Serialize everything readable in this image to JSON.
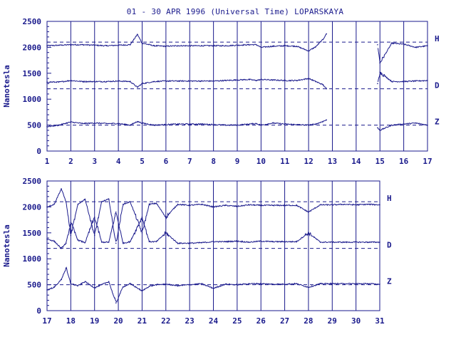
{
  "title": "01 - 30 APR 1996 (Universal Time) LOPARSKAYA",
  "line_color": "#1a1a8c",
  "chart_data": [
    {
      "type": "line",
      "panel": "top",
      "ylabel": "Nanotesla",
      "ylim": [
        0,
        2500
      ],
      "y_ticks": [
        0,
        500,
        1000,
        1500,
        2000,
        2500
      ],
      "x_range": [
        1,
        17
      ],
      "x_ticks": [
        "1",
        "2",
        "3",
        "4",
        "5",
        "6",
        "7",
        "8",
        "9",
        "10",
        "11",
        "12",
        "13",
        "14",
        "15",
        "16",
        "17"
      ],
      "data_gap": [
        12.75,
        14.9
      ],
      "grid": "vertical lines at each day",
      "series": [
        {
          "name": "H",
          "baseline": 2100,
          "x": [
            1,
            1.5,
            2,
            2.5,
            3,
            3.5,
            4,
            4.5,
            4.8,
            5,
            5.5,
            6,
            6.5,
            7,
            7.5,
            8,
            8.5,
            9,
            9.5,
            9.8,
            10,
            10.5,
            11,
            11.5,
            12,
            12.3,
            12.6,
            12.75,
            14.9,
            15,
            15.5,
            16,
            16.5,
            17
          ],
          "y": [
            2030,
            2040,
            2050,
            2050,
            2040,
            2030,
            2040,
            2050,
            2250,
            2080,
            2030,
            2020,
            2030,
            2030,
            2030,
            2030,
            2030,
            2040,
            2050,
            2050,
            2000,
            2020,
            2030,
            2020,
            1930,
            2010,
            2150,
            2260,
            2050,
            1700,
            2080,
            2060,
            2000,
            2030
          ]
        },
        {
          "name": "D",
          "baseline": 1200,
          "x": [
            1,
            1.5,
            2,
            2.5,
            3,
            3.5,
            4,
            4.5,
            4.8,
            5,
            5.5,
            6,
            6.5,
            7,
            7.5,
            8,
            8.5,
            9,
            9.5,
            9.8,
            10,
            10.5,
            11,
            11.5,
            12,
            12.3,
            12.6,
            12.75,
            14.9,
            15,
            15.5,
            16,
            16.5,
            17
          ],
          "y": [
            1330,
            1330,
            1360,
            1340,
            1340,
            1340,
            1350,
            1340,
            1230,
            1300,
            1340,
            1350,
            1350,
            1350,
            1350,
            1350,
            1360,
            1370,
            1380,
            1360,
            1380,
            1370,
            1360,
            1360,
            1400,
            1340,
            1280,
            1200,
            1300,
            1520,
            1340,
            1340,
            1350,
            1360
          ]
        },
        {
          "name": "Z",
          "baseline": 500,
          "x": [
            1,
            1.5,
            2,
            2.5,
            3,
            3.5,
            4,
            4.5,
            4.8,
            5,
            5.5,
            6,
            6.5,
            7,
            7.5,
            8,
            8.5,
            9,
            9.5,
            9.8,
            10,
            10.5,
            11,
            11.5,
            12,
            12.3,
            12.6,
            12.75,
            14.9,
            15,
            15.5,
            16,
            16.5,
            17
          ],
          "y": [
            470,
            500,
            560,
            530,
            540,
            530,
            530,
            500,
            570,
            540,
            500,
            510,
            520,
            520,
            520,
            510,
            500,
            500,
            520,
            530,
            500,
            540,
            520,
            510,
            500,
            520,
            570,
            600,
            450,
            400,
            500,
            520,
            540,
            500
          ]
        }
      ]
    },
    {
      "type": "line",
      "panel": "bottom",
      "ylabel": "Nanotesla",
      "ylim": [
        0,
        2500
      ],
      "y_ticks": [
        0,
        500,
        1000,
        1500,
        2000,
        2500
      ],
      "x_range": [
        17,
        31
      ],
      "x_ticks": [
        "17",
        "18",
        "19",
        "20",
        "21",
        "22",
        "23",
        "24",
        "25",
        "26",
        "27",
        "28",
        "29",
        "30",
        "31"
      ],
      "grid": "vertical lines at each day",
      "series": [
        {
          "name": "H",
          "baseline": 2100,
          "x": [
            17,
            17.3,
            17.6,
            17.8,
            18,
            18.3,
            18.6,
            19,
            19.3,
            19.6,
            19.9,
            20.2,
            20.5,
            21,
            21.3,
            21.6,
            22,
            22.5,
            23,
            23.5,
            24,
            24.5,
            25,
            25.5,
            26,
            26.5,
            27,
            27.5,
            28,
            28.5,
            29,
            29.5,
            30,
            30.5,
            31
          ],
          "y": [
            2000,
            2050,
            2350,
            2100,
            1450,
            2050,
            2150,
            1450,
            2100,
            2150,
            1300,
            2050,
            2100,
            1500,
            2050,
            2070,
            1800,
            2050,
            2030,
            2050,
            2000,
            2030,
            2010,
            2040,
            2030,
            2030,
            2030,
            2030,
            1900,
            2040,
            2040,
            2050,
            2040,
            2050,
            2040
          ]
        },
        {
          "name": "D",
          "baseline": 1200,
          "x": [
            17,
            17.3,
            17.6,
            17.8,
            18,
            18.3,
            18.6,
            19,
            19.3,
            19.6,
            19.9,
            20.2,
            20.5,
            21,
            21.3,
            21.6,
            22,
            22.5,
            23,
            23.5,
            24,
            24.5,
            25,
            25.5,
            26,
            26.5,
            27,
            27.5,
            28,
            28.5,
            29,
            29.5,
            30,
            30.5,
            31
          ],
          "y": [
            1380,
            1340,
            1200,
            1300,
            1700,
            1360,
            1310,
            1800,
            1320,
            1320,
            1900,
            1300,
            1330,
            1800,
            1330,
            1330,
            1500,
            1300,
            1300,
            1310,
            1330,
            1330,
            1340,
            1320,
            1340,
            1330,
            1330,
            1330,
            1500,
            1320,
            1320,
            1320,
            1320,
            1320,
            1320
          ]
        },
        {
          "name": "Z",
          "baseline": 500,
          "x": [
            17,
            17.3,
            17.6,
            17.8,
            18,
            18.3,
            18.6,
            19,
            19.3,
            19.6,
            19.9,
            20.2,
            20.5,
            21,
            21.3,
            21.6,
            22,
            22.5,
            23,
            23.5,
            24,
            24.5,
            25,
            25.5,
            26,
            26.5,
            27,
            27.5,
            28,
            28.5,
            29,
            29.5,
            30,
            30.5,
            31
          ],
          "y": [
            400,
            450,
            600,
            820,
            520,
            480,
            560,
            440,
            500,
            560,
            150,
            460,
            520,
            380,
            470,
            500,
            510,
            480,
            500,
            520,
            430,
            510,
            500,
            520,
            520,
            510,
            510,
            520,
            450,
            520,
            520,
            520,
            520,
            520,
            510
          ]
        }
      ]
    }
  ]
}
